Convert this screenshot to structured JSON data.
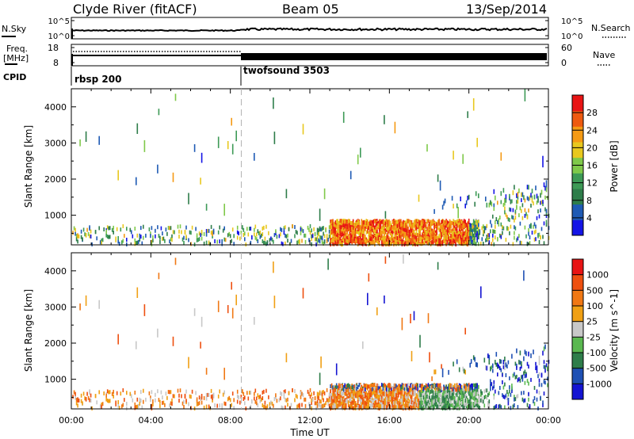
{
  "header": {
    "station": "Clyde River (fitACF)",
    "beam": "Beam 05",
    "date": "13/Sep/2014"
  },
  "nsky_panel": {
    "left_label": "N.Sky",
    "left_ticks": [
      "10^5",
      "10^0"
    ],
    "right_ticks": [
      "10^5",
      "10^0"
    ],
    "right_label": "N.Search"
  },
  "freq_panel": {
    "left_label_1": "Freq.",
    "left_label_2": "[MHz]",
    "left_ticks": [
      "18",
      "8"
    ],
    "right_ticks": [
      "60",
      "0"
    ],
    "right_label": "Nave"
  },
  "cpid_panel": {
    "label": "CPID",
    "segments": [
      "rbsp 200",
      "twofsound 3503"
    ]
  },
  "colors": {
    "power": [
      "#1414e6",
      "#1e5ab4",
      "#2e7d4a",
      "#3d9a56",
      "#7fc94a",
      "#e8c81e",
      "#f59a14",
      "#ee5a10",
      "#e81414"
    ],
    "velocity": [
      "#1414d2",
      "#1e50b4",
      "#2e7d4a",
      "#5ab850",
      "#c8c8c8",
      "#f0a014",
      "#f07814",
      "#ee5010",
      "#e81414"
    ],
    "dashed_line": "#b4b4b4"
  },
  "chart_data": [
    {
      "type": "heatmap",
      "name": "power",
      "ylabel": "Slant Range [km]",
      "x_ticks": [
        "00:00",
        "04:00",
        "08:00",
        "12:00",
        "16:00",
        "20:00",
        "00:00"
      ],
      "y_ticks": [
        1000,
        2000,
        3000,
        4000
      ],
      "ylim": [
        180,
        4500
      ],
      "xlim_hours": [
        0,
        24
      ],
      "colorbar": {
        "label": "Power [dB]",
        "ticks": [
          4,
          8,
          12,
          16,
          20,
          24,
          28
        ],
        "range": [
          0,
          32
        ]
      },
      "cpid_change_hour": 8.55
    },
    {
      "type": "heatmap",
      "name": "velocity",
      "ylabel": "Slant Range [km]",
      "xlabel": "Time UT",
      "x_ticks": [
        "00:00",
        "04:00",
        "08:00",
        "12:00",
        "16:00",
        "20:00",
        "00:00"
      ],
      "y_ticks": [
        1000,
        2000,
        3000,
        4000
      ],
      "ylim": [
        180,
        4500
      ],
      "xlim_hours": [
        0,
        24
      ],
      "colorbar": {
        "label": "Velocity [m s^-1]",
        "ticks": [
          1000,
          500,
          100,
          25,
          -25,
          -100,
          -500,
          -1000
        ]
      },
      "cpid_change_hour": 8.55
    }
  ]
}
